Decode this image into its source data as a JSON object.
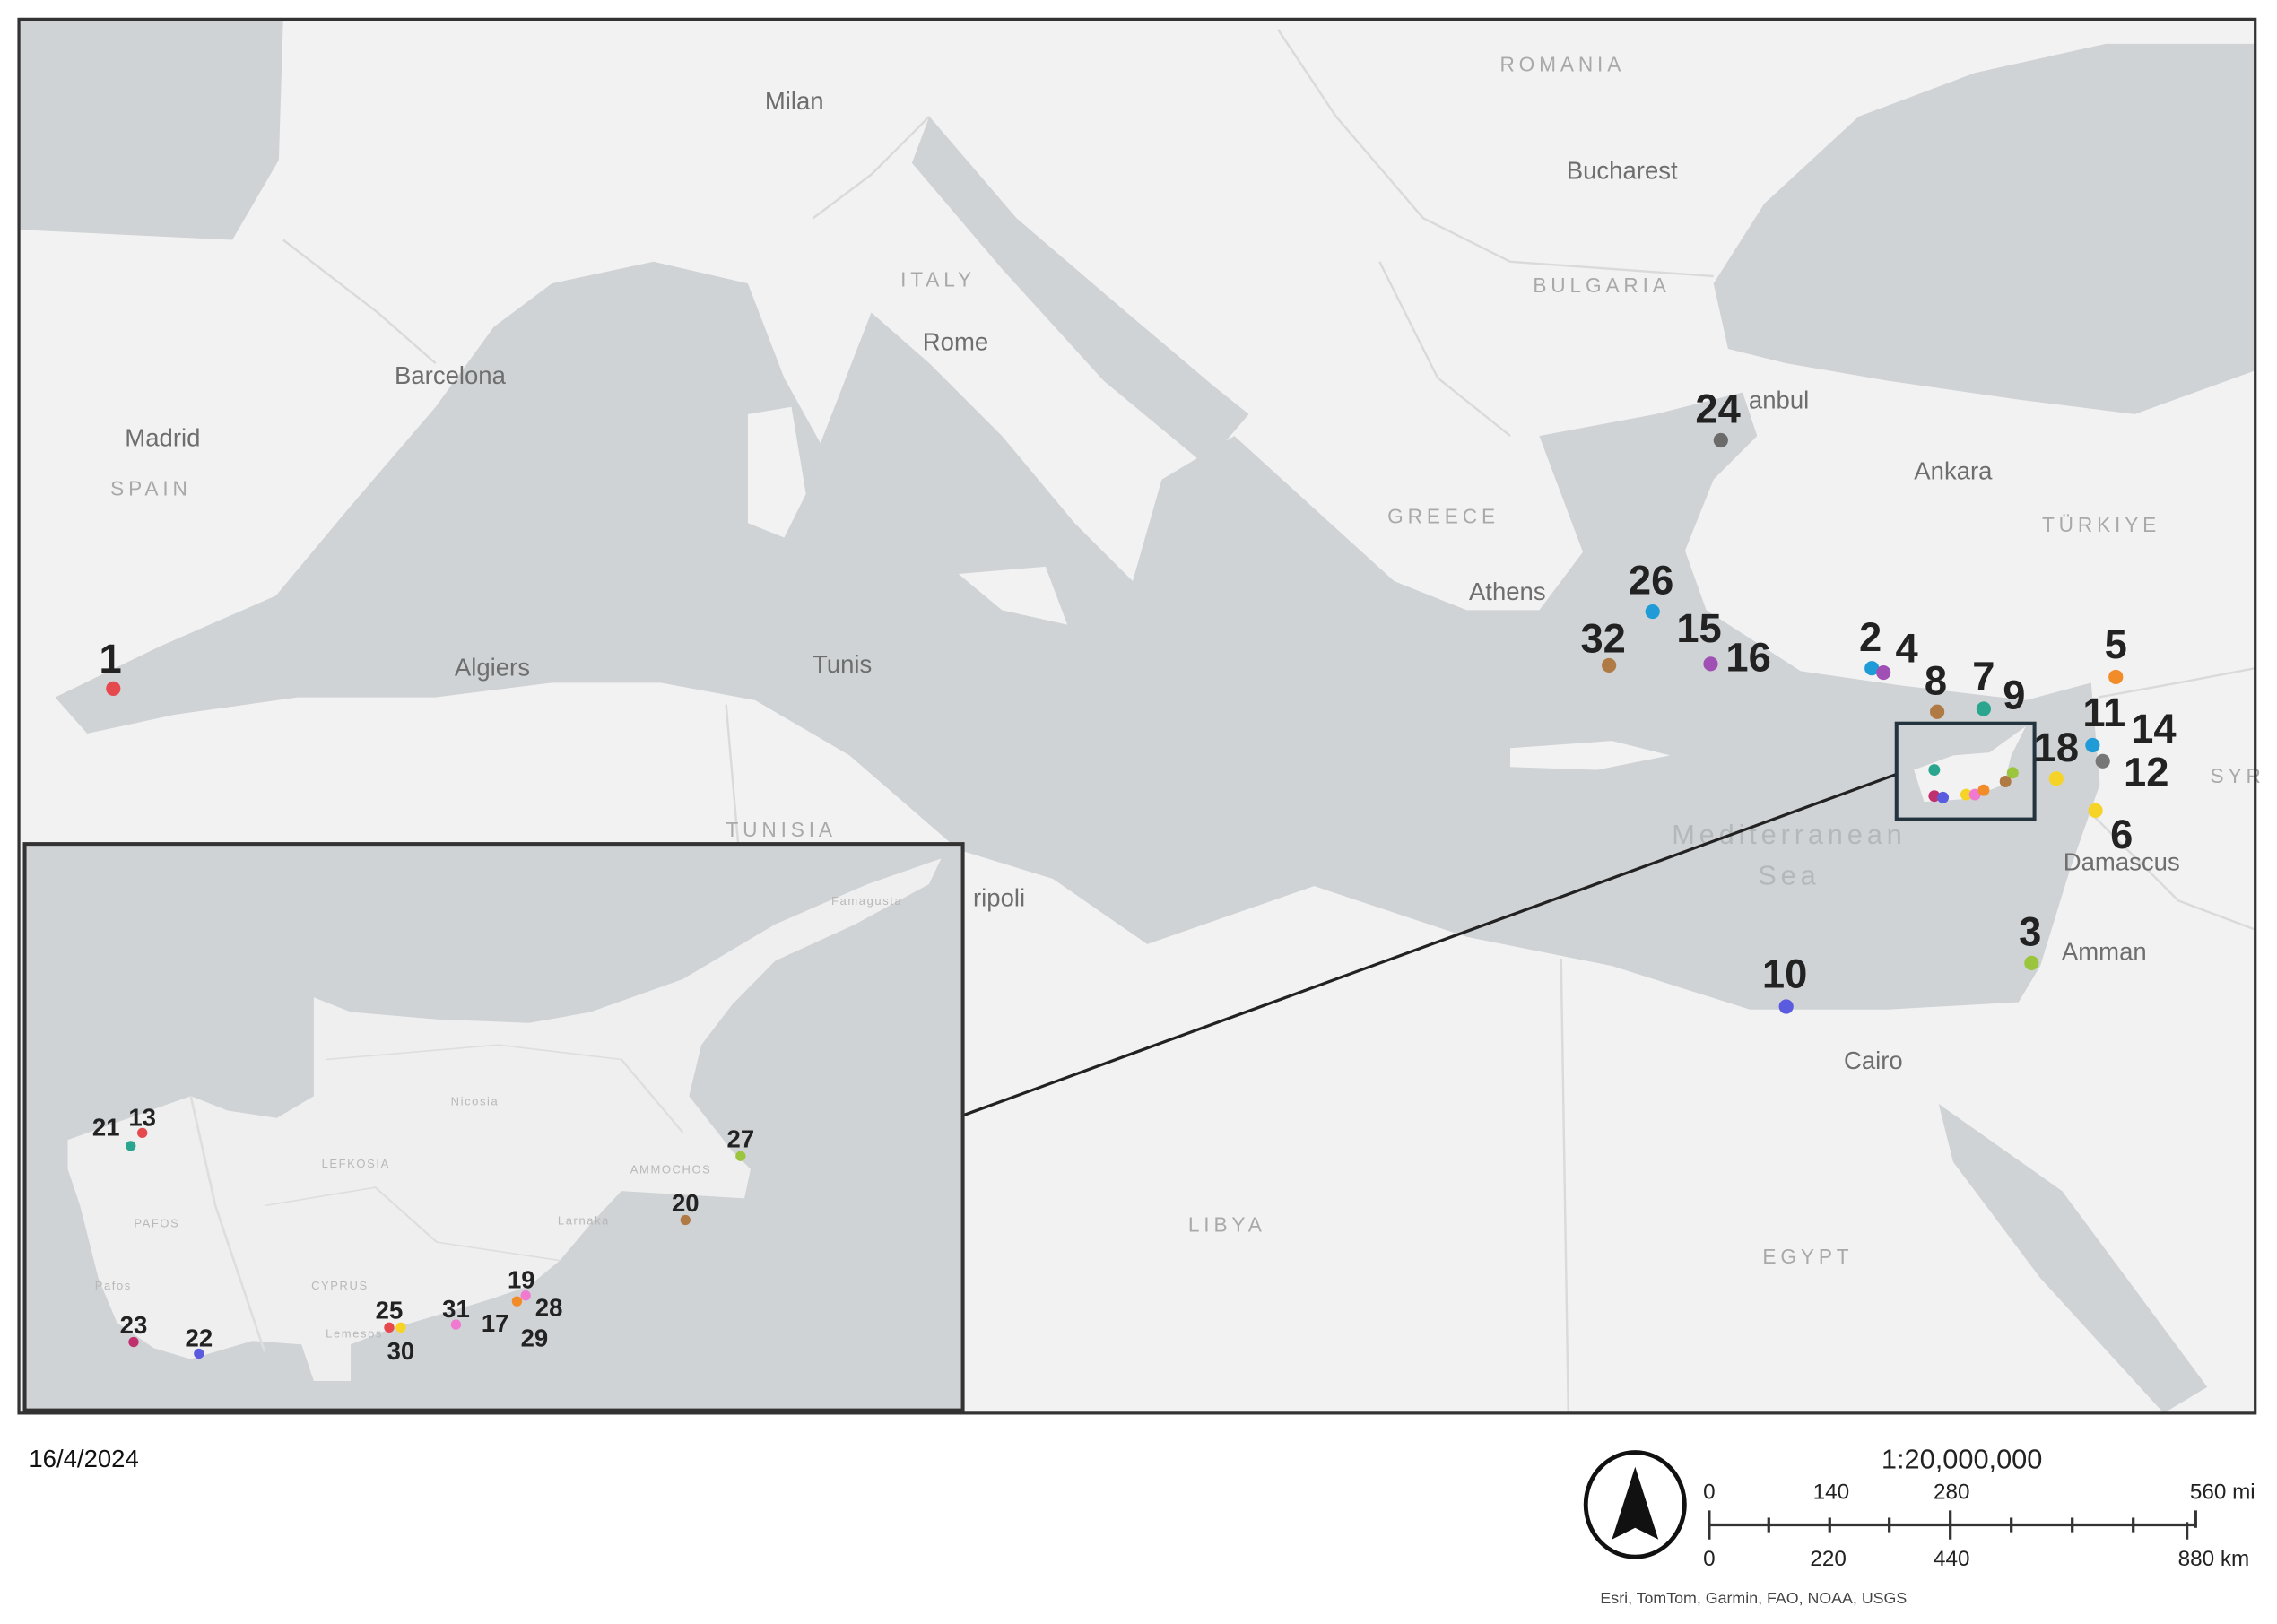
{
  "map": {
    "colors": {
      "land": "#f2f2f2",
      "sea": "#cfd3d5",
      "border": "#d9d9d9",
      "frame": "#333333",
      "highlight_label": "#ff1a1a"
    },
    "places": {
      "milan": "Milan",
      "rome": "Rome",
      "barcelona": "Barcelona",
      "madrid": "Madrid",
      "spain": "SPAIN",
      "italy": "ITALY",
      "algiers": "Algiers",
      "tunis": "Tunis",
      "tunisia": "TUNISIA",
      "tripoli": "ripoli",
      "romania": "ROMANIA",
      "bucharest": "Bucharest",
      "bulgaria": "BULGARIA",
      "istanbul": "anbul",
      "greece": "GREECE",
      "athens": "Athens",
      "ankara": "Ankara",
      "turkiye": "TÜRKIYE",
      "syria": "SYR",
      "sea1": "Mediterranean",
      "sea2": "Sea",
      "damascus": "Damascus",
      "amman": "Amman",
      "cairo": "Cairo",
      "libya": "LIBYA",
      "egypt": "EGYPT"
    },
    "inset_places": {
      "nicosia": "Nicosia",
      "lefkosia": "LEFKOSIA",
      "pafos_district": "PAFOS",
      "ammochostos": "AMMOCHOS",
      "larnaka": "Larnaka",
      "pafos": "Pafos",
      "cyprus": "CYPRUS",
      "lemesos": "Lemesos",
      "famagusta": "Famagusta"
    },
    "sites": [
      {
        "id": "1",
        "color": "#e5484d"
      },
      {
        "id": "2",
        "color": "#1f9bd7"
      },
      {
        "id": "3",
        "color": "#9bc53d"
      },
      {
        "id": "4",
        "color": "#a04fb5"
      },
      {
        "id": "5",
        "color": "#f28c28"
      },
      {
        "id": "6",
        "color": "#f5d327"
      },
      {
        "id": "7",
        "color": "#2aa58e"
      },
      {
        "id": "8",
        "color": "#b07a45"
      },
      {
        "id": "9",
        "color": ""
      },
      {
        "id": "10",
        "color": "#5b5be0"
      },
      {
        "id": "11",
        "color": "#1f9bd7"
      },
      {
        "id": "12",
        "color": "#777777"
      },
      {
        "id": "14",
        "color": ""
      },
      {
        "id": "15",
        "color": ""
      },
      {
        "id": "16",
        "color": "#a04fb5"
      },
      {
        "id": "18",
        "color": "#f5d327"
      },
      {
        "id": "24",
        "color": "#6b6b6b"
      },
      {
        "id": "26",
        "color": "#1f9bd7"
      },
      {
        "id": "32",
        "color": "#b07a45",
        "highlight": true
      }
    ],
    "inset_sites": [
      {
        "id": "13",
        "color": "#e5484d"
      },
      {
        "id": "17",
        "color": ""
      },
      {
        "id": "19",
        "color": "#f07ad0"
      },
      {
        "id": "20",
        "color": "#b07a45"
      },
      {
        "id": "21",
        "color": "#2aa58e"
      },
      {
        "id": "22",
        "color": "#5b5be0"
      },
      {
        "id": "23",
        "color": "#c0306f"
      },
      {
        "id": "25",
        "color": "#e5484d"
      },
      {
        "id": "27",
        "color": "#9bc53d"
      },
      {
        "id": "28",
        "color": "#f28c28"
      },
      {
        "id": "29",
        "color": ""
      },
      {
        "id": "30",
        "color": "#f5d327"
      },
      {
        "id": "31",
        "color": "#f07ad0"
      }
    ]
  },
  "footer": {
    "date": "16/4/2024",
    "scale_ratio": "1:20,000,000",
    "scale_mi": [
      "0",
      "140",
      "280",
      "560 mi"
    ],
    "scale_km": [
      "0",
      "220",
      "440",
      "880 km"
    ],
    "attribution": "Esri, TomTom, Garmin, FAO, NOAA, USGS",
    "north_arrow_icon": "north-arrow-icon"
  }
}
